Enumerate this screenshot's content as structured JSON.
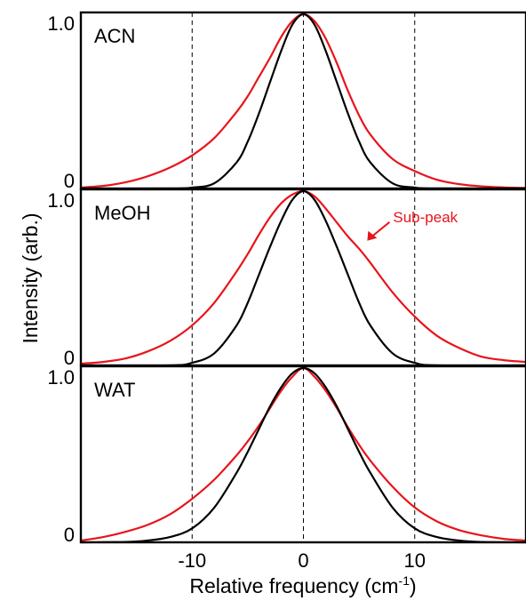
{
  "chart_data": {
    "type": "line",
    "ylabel": "Intensity (arb.)",
    "xlabel": "Relative frequency (cm",
    "xlabel_superscript": "-1",
    "xlabel_suffix": ")",
    "xlim": [
      -20,
      20
    ],
    "xticks": [
      -10,
      0,
      10
    ],
    "xtick_labels": [
      "-10",
      "0",
      "10"
    ],
    "dashed_guides": [
      -10,
      0,
      10
    ],
    "series_colors": {
      "red": "#e8141b",
      "black": "#000000"
    },
    "panels": [
      {
        "label": "ACN",
        "ylim": [
          0,
          1.0
        ],
        "ytick_labels": {
          "top": "1.0",
          "bottom": "0"
        },
        "series": [
          {
            "color": "#e8141b",
            "x": [
              -20,
              -18,
              -16,
              -14,
              -12,
              -10,
              -8,
              -6,
              -5,
              -4,
              -3,
              -2,
              -1,
              0,
              1,
              2,
              3,
              4,
              5,
              6,
              8,
              10,
              12,
              14,
              16,
              18,
              20
            ],
            "y": [
              0.005,
              0.015,
              0.035,
              0.07,
              0.12,
              0.19,
              0.29,
              0.44,
              0.53,
              0.64,
              0.75,
              0.87,
              0.96,
              1.0,
              0.96,
              0.86,
              0.72,
              0.56,
              0.42,
              0.31,
              0.17,
              0.1,
              0.05,
              0.025,
              0.012,
              0.006,
              0.003
            ]
          },
          {
            "color": "#000000",
            "x": [
              -20,
              -12,
              -10,
              -8,
              -6,
              -5,
              -4,
              -3,
              -2,
              -1,
              0,
              1,
              2,
              3,
              4,
              5,
              6,
              8,
              10,
              12,
              20
            ],
            "y": [
              0.0,
              0.0,
              0.005,
              0.03,
              0.15,
              0.27,
              0.43,
              0.61,
              0.79,
              0.94,
              1.0,
              0.94,
              0.79,
              0.61,
              0.43,
              0.27,
              0.15,
              0.03,
              0.005,
              0.0,
              0.0
            ]
          }
        ]
      },
      {
        "label": "MeOH",
        "ylim": [
          0,
          1.0
        ],
        "ytick_labels": {
          "top": "1.0",
          "bottom": "0"
        },
        "annotation": {
          "text": "Sub-peak",
          "x": 5.5,
          "y": 0.7
        },
        "series": [
          {
            "color": "#e8141b",
            "x": [
              -20,
              -18,
              -16,
              -14,
              -12,
              -10,
              -8,
              -6,
              -5,
              -4,
              -3,
              -2,
              -1,
              0,
              1,
              2,
              3,
              4,
              5,
              6,
              8,
              10,
              12,
              14,
              16,
              18,
              20
            ],
            "y": [
              0.01,
              0.02,
              0.04,
              0.08,
              0.14,
              0.23,
              0.36,
              0.54,
              0.64,
              0.75,
              0.85,
              0.93,
              0.98,
              1.0,
              0.97,
              0.9,
              0.82,
              0.74,
              0.67,
              0.59,
              0.42,
              0.28,
              0.17,
              0.1,
              0.05,
              0.03,
              0.02
            ]
          },
          {
            "color": "#000000",
            "x": [
              -20,
              -12,
              -10,
              -8,
              -6,
              -5,
              -4,
              -3,
              -2,
              -1,
              0,
              1,
              2,
              3,
              4,
              5,
              6,
              8,
              10,
              12,
              20
            ],
            "y": [
              0.0,
              0.0,
              0.015,
              0.07,
              0.23,
              0.36,
              0.52,
              0.68,
              0.83,
              0.95,
              1.0,
              0.95,
              0.83,
              0.68,
              0.52,
              0.36,
              0.23,
              0.07,
              0.015,
              0.0,
              0.0
            ]
          }
        ]
      },
      {
        "label": "WAT",
        "ylim": [
          0,
          1.0
        ],
        "ytick_labels": {
          "top": "1.0",
          "bottom": "0"
        },
        "series": [
          {
            "color": "#e8141b",
            "x": [
              -20,
              -18,
              -16,
              -14,
              -12,
              -10,
              -8,
              -6,
              -5,
              -4,
              -3,
              -2,
              -1,
              0,
              1,
              2,
              3,
              4,
              5,
              6,
              8,
              10,
              12,
              14,
              16,
              18,
              20
            ],
            "y": [
              0.01,
              0.03,
              0.06,
              0.1,
              0.16,
              0.25,
              0.36,
              0.5,
              0.58,
              0.67,
              0.77,
              0.87,
              0.95,
              1.0,
              0.95,
              0.87,
              0.77,
              0.66,
              0.56,
              0.47,
              0.32,
              0.2,
              0.12,
              0.07,
              0.04,
              0.02,
              0.01
            ]
          },
          {
            "color": "#000000",
            "x": [
              -20,
              -16,
              -14,
              -12,
              -10,
              -8,
              -6,
              -5,
              -4,
              -3,
              -2,
              -1,
              0,
              1,
              2,
              3,
              4,
              5,
              6,
              8,
              10,
              12,
              14,
              16,
              20
            ],
            "y": [
              0.0,
              0.002,
              0.01,
              0.03,
              0.08,
              0.2,
              0.4,
              0.52,
              0.65,
              0.78,
              0.89,
              0.97,
              1.0,
              0.97,
              0.89,
              0.78,
              0.65,
              0.52,
              0.4,
              0.2,
              0.08,
              0.03,
              0.01,
              0.002,
              0.0
            ]
          }
        ]
      }
    ]
  }
}
